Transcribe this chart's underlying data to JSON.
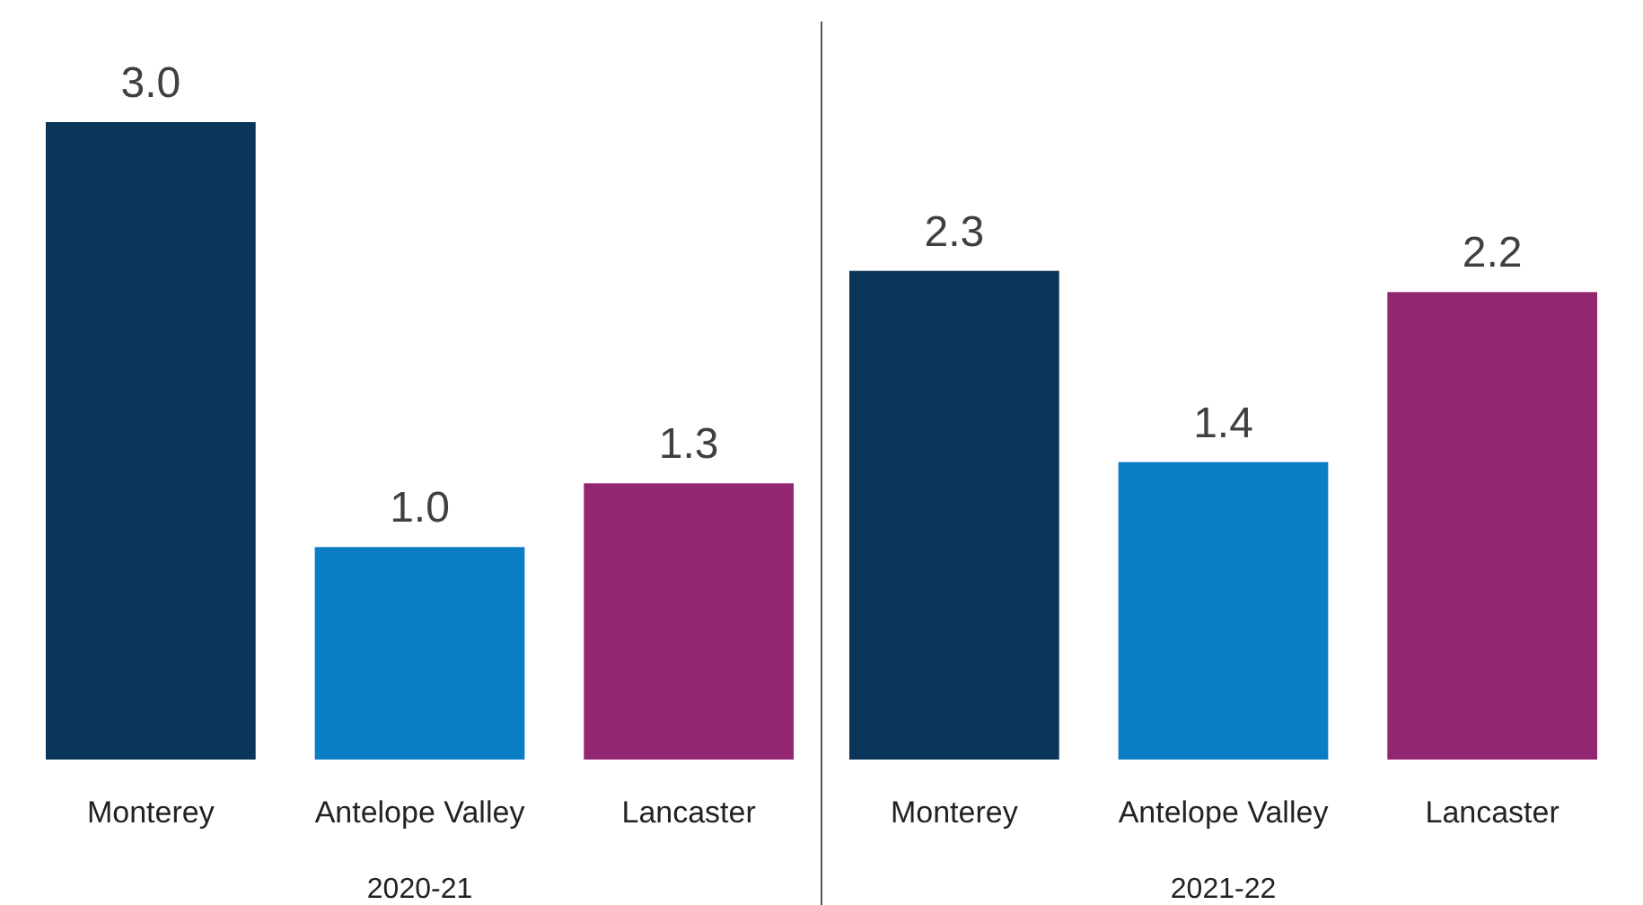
{
  "chart_data": [
    {
      "type": "bar",
      "xlabel": "2020-21",
      "categories": [
        "Monterey",
        "Antelope Valley",
        "Lancaster"
      ],
      "values": [
        3.0,
        1.0,
        1.3
      ],
      "value_labels": [
        "3.0",
        "1.0",
        "1.3"
      ],
      "colors": [
        "#0b3558",
        "#0a7dc4",
        "#932670"
      ]
    },
    {
      "type": "bar",
      "xlabel": "2021-22",
      "categories": [
        "Monterey",
        "Antelope Valley",
        "Lancaster"
      ],
      "values": [
        2.3,
        1.4,
        2.2
      ],
      "value_labels": [
        "2.3",
        "1.4",
        "2.2"
      ],
      "colors": [
        "#0b3558",
        "#0a7dc4",
        "#932670"
      ]
    }
  ]
}
